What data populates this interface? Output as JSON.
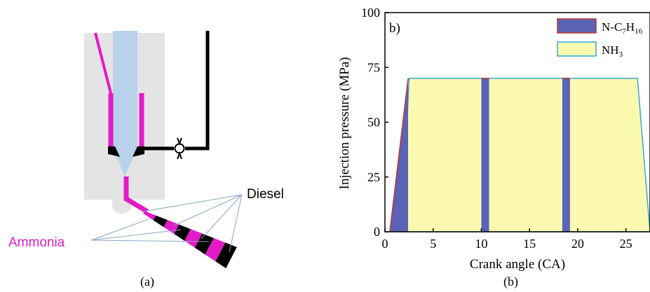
{
  "panel_a": {
    "caption": "(a)",
    "label_diesel": "Diesel",
    "label_ammonia": "Ammonia",
    "colors": {
      "body": "#e4e4e4",
      "needle": "#b8d2ec",
      "ammonia": "#e21bc6",
      "diesel": "#000000"
    }
  },
  "panel_b": {
    "caption": "(b)",
    "panel_tag": "b)"
  },
  "chart_data": {
    "type": "area",
    "title": "",
    "xlabel": "Crank angle (CA)",
    "ylabel": "Injection pressure (MPa)",
    "xlim": [
      0,
      27.5
    ],
    "ylim": [
      0,
      100
    ],
    "x_ticks": [
      0,
      5,
      10,
      15,
      20,
      25
    ],
    "y_ticks": [
      0,
      25,
      50,
      75,
      100
    ],
    "x_tick_labels": [
      "0",
      "5",
      "10",
      "15",
      "20",
      "25"
    ],
    "y_tick_labels": [
      "0",
      "25",
      "50",
      "75",
      "100"
    ],
    "legend": {
      "placement": "top-right",
      "entries": [
        {
          "base": "N-C",
          "sub1": "7",
          "mid": "H",
          "sub2": "16"
        },
        {
          "base": "NH",
          "sub1": "3",
          "mid": "",
          "sub2": ""
        }
      ]
    },
    "colors": {
      "nheptane": "#5a63b5",
      "nheptane_edge": "#c0392b",
      "ammonia": "#fbf8b0",
      "ammonia_edge": "#35a8d6"
    },
    "series": [
      {
        "name": "N-C7H16",
        "pulses": [
          {
            "x": [
              0.5,
              2.4,
              2.4
            ],
            "y": [
              0,
              70,
              0
            ]
          },
          {
            "x": [
              10.0,
              10.0,
              10.8,
              10.8
            ],
            "y": [
              0,
              70,
              70,
              0
            ]
          },
          {
            "x": [
              18.4,
              18.4,
              19.2,
              19.2
            ],
            "y": [
              0,
              70,
              70,
              0
            ]
          }
        ]
      },
      {
        "name": "NH3",
        "x": [
          1.8,
          2.5,
          26.2,
          27.5
        ],
        "y": [
          0,
          70,
          70,
          0
        ],
        "gaps": [
          [
            10.0,
            10.8
          ],
          [
            18.4,
            19.2
          ]
        ]
      }
    ]
  }
}
